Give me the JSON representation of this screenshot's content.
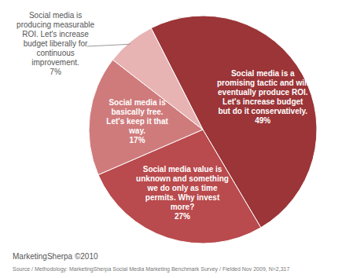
{
  "chart_data": {
    "type": "pie",
    "categories": [
      "Social media is a promising tactic and will eventually produce ROI. Let's increase budget but do it conservatively.",
      "Social media value is unknown and something we do only as time permits. Why invest more?",
      "Social media is basically free. Let's keep it that way.",
      "Social media is producing measurable ROI. Let's increase budget liberally for continuous improvement."
    ],
    "values": [
      49,
      27,
      17,
      7
    ],
    "value_labels": [
      "49%",
      "27%",
      "17%",
      "7%"
    ],
    "colors": [
      "#9b3538",
      "#b94a4d",
      "#cf7b7c",
      "#e8b3b3"
    ],
    "data_labels": true,
    "annotations": [
      "MarketingSherpa ©2010",
      "Source / Methodology: MarketingSherpa Social Media Marketing Benchmark Survey / Fielded Nov 2009, N=2,317"
    ]
  }
}
